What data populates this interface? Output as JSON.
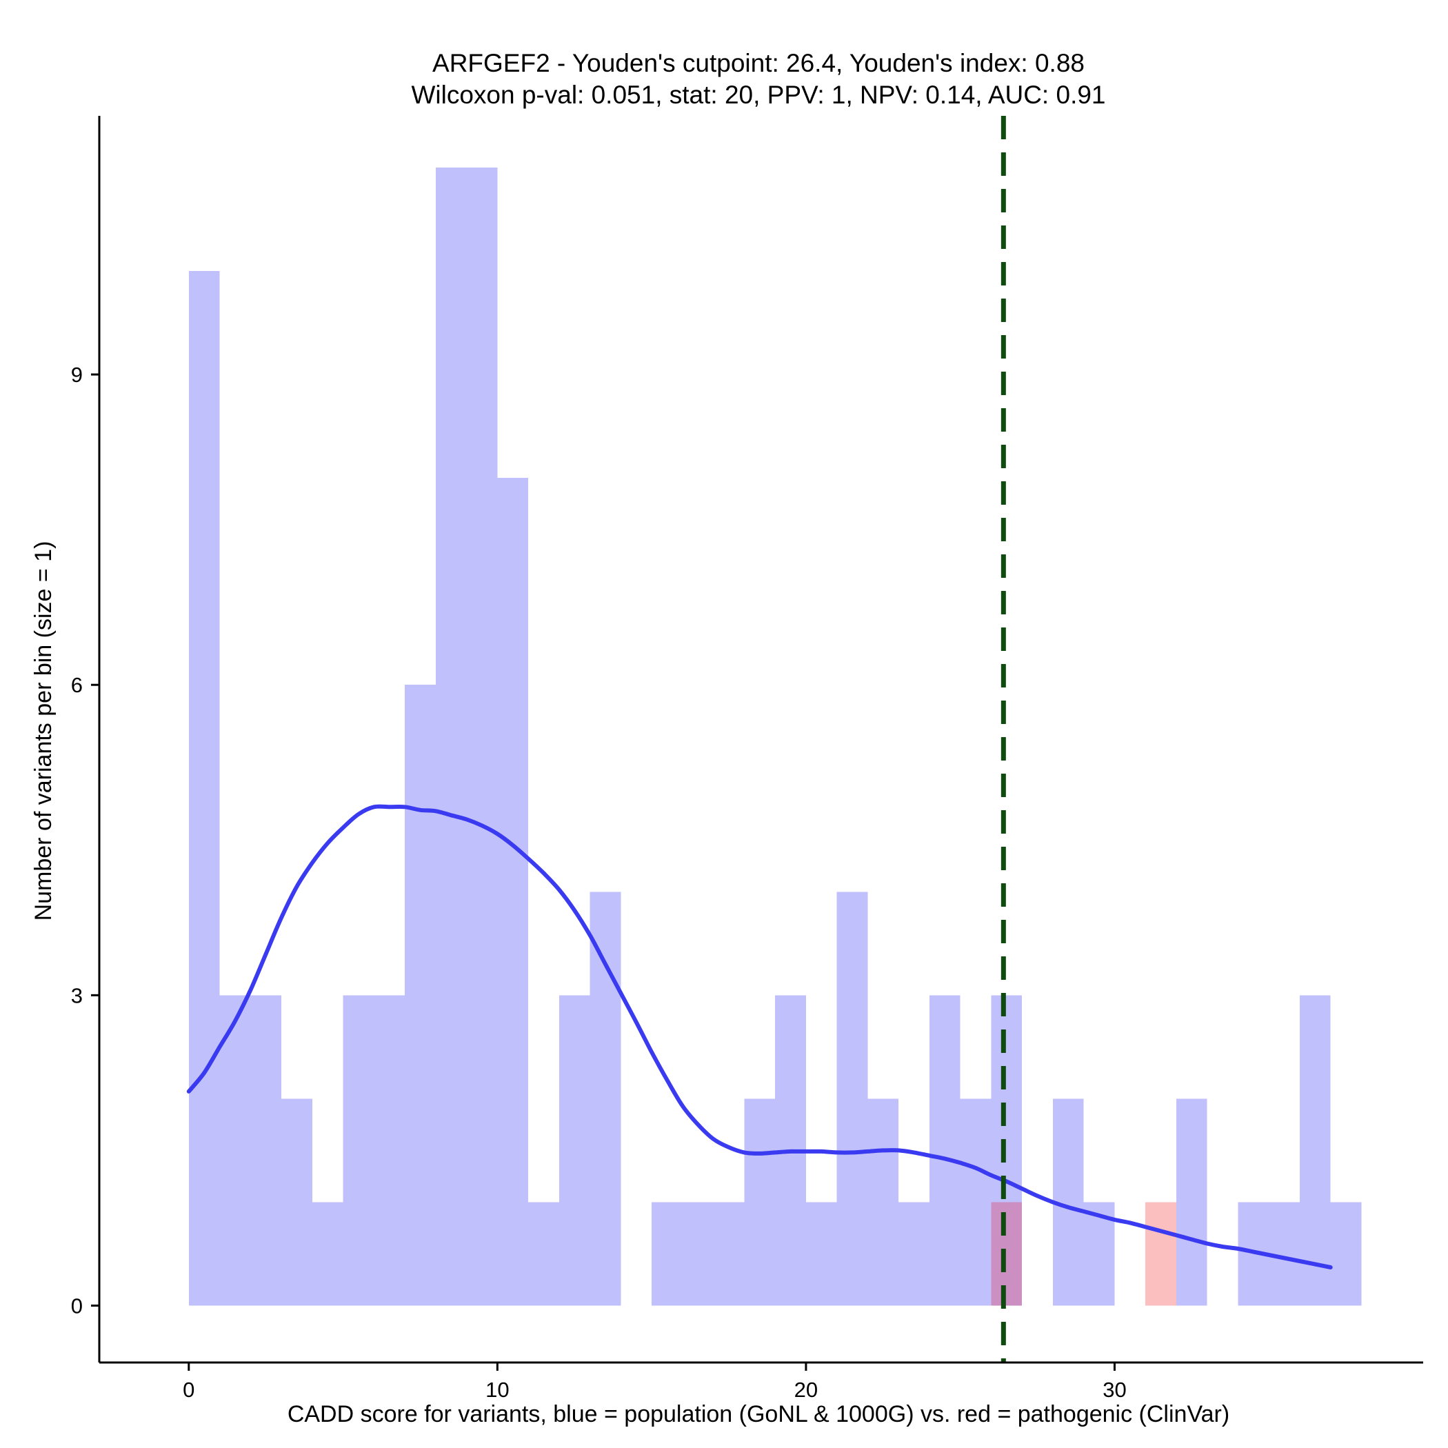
{
  "chart_data": {
    "type": "bar",
    "title": "ARFGEF2 - Youden's cutpoint: 26.4, Youden's index: 0.88",
    "subtitle": "Wilcoxon p-val: 0.051, stat: 20, PPV: 1, NPV: 0.14, AUC: 0.91",
    "xlabel": "CADD score for variants, blue = population (GoNL & 1000G) vs. red = pathogenic (ClinVar)",
    "ylabel": "Number of variants per bin (size = 1)",
    "xlim": [
      -2.9,
      40
    ],
    "ylim": [
      -0.55,
      11.5
    ],
    "x_ticks": [
      0,
      10,
      20,
      30
    ],
    "x_tick_labels": [
      "0",
      "10",
      "20",
      "30"
    ],
    "y_ticks": [
      0,
      3,
      6,
      9
    ],
    "y_tick_labels": [
      "0",
      "3",
      "6",
      "9"
    ],
    "bin_size": 1,
    "cutpoint": 26.4,
    "series": [
      {
        "name": "population (GoNL & 1000G)",
        "color": "#c0c0fc",
        "bin_starts": [
          0,
          1,
          2,
          3,
          4,
          5,
          6,
          7,
          8,
          9,
          10,
          11,
          12,
          13,
          14,
          15,
          16,
          17,
          18,
          19,
          20,
          21,
          22,
          23,
          24,
          25,
          26,
          27,
          28,
          29,
          30,
          31,
          32,
          33,
          34,
          35,
          36,
          37
        ],
        "values": [
          10,
          3,
          3,
          2,
          1,
          3,
          3,
          6,
          11,
          11,
          8,
          1,
          3,
          4,
          0,
          1,
          1,
          1,
          2,
          3,
          1,
          4,
          2,
          1,
          3,
          2,
          3,
          0,
          2,
          1,
          0,
          0,
          2,
          0,
          1,
          1,
          3,
          1
        ]
      },
      {
        "name": "pathogenic (ClinVar)",
        "color": "#fcbfc0",
        "overlap_color": "#cc8fc1",
        "bin_starts": [
          26,
          31
        ],
        "values": [
          1,
          1
        ]
      }
    ],
    "density_curve": {
      "name": "population density (scaled)",
      "color": "#3a3af0",
      "x": [
        0,
        0.5,
        1,
        1.5,
        2,
        2.5,
        3,
        3.5,
        4,
        4.5,
        5,
        5.5,
        6,
        6.5,
        7,
        7.5,
        8,
        8.5,
        9,
        9.5,
        10,
        10.5,
        11,
        11.5,
        12,
        12.5,
        13,
        13.5,
        14,
        14.5,
        15,
        15.5,
        16,
        16.5,
        17,
        17.5,
        18,
        18.5,
        19,
        19.5,
        20,
        20.5,
        21,
        21.5,
        22,
        22.5,
        23,
        23.5,
        24,
        24.5,
        25,
        25.5,
        26,
        26.5,
        27,
        27.5,
        28,
        28.5,
        29,
        29.5,
        30,
        30.5,
        31,
        31.5,
        32,
        32.5,
        33,
        33.5,
        34,
        34.5,
        35,
        35.5,
        36,
        36.5,
        37
      ],
      "y": [
        2.07,
        2.25,
        2.5,
        2.75,
        3.05,
        3.4,
        3.75,
        4.05,
        4.28,
        4.47,
        4.62,
        4.75,
        4.82,
        4.82,
        4.82,
        4.79,
        4.78,
        4.74,
        4.7,
        4.64,
        4.56,
        4.45,
        4.32,
        4.18,
        4.02,
        3.82,
        3.58,
        3.3,
        3.02,
        2.74,
        2.45,
        2.18,
        1.93,
        1.75,
        1.61,
        1.53,
        1.48,
        1.47,
        1.48,
        1.49,
        1.49,
        1.49,
        1.48,
        1.48,
        1.49,
        1.5,
        1.5,
        1.48,
        1.45,
        1.42,
        1.38,
        1.33,
        1.26,
        1.2,
        1.13,
        1.06,
        1.0,
        0.95,
        0.91,
        0.87,
        0.83,
        0.8,
        0.76,
        0.72,
        0.68,
        0.64,
        0.6,
        0.57,
        0.55,
        0.52,
        0.49,
        0.46,
        0.43,
        0.4,
        0.37
      ]
    }
  }
}
